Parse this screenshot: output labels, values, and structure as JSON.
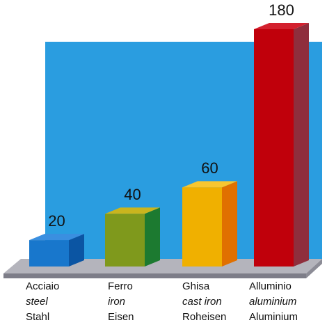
{
  "chart_data": {
    "type": "bar3d",
    "categories": [
      [
        "Acciaio",
        "steel",
        "Stahl"
      ],
      [
        "Ferro",
        "iron",
        "Eisen"
      ],
      [
        "Ghisa",
        "cast iron",
        "Roheisen"
      ],
      [
        "Alluminio",
        "aluminium",
        "Aluminium"
      ]
    ],
    "values": [
      20,
      40,
      60,
      180
    ],
    "colors": [
      {
        "front": "#1877cc",
        "side": "#0b55a3",
        "top": "#3a8fe0"
      },
      {
        "front": "#7f991c",
        "side": "#1c7a30",
        "top": "#c9b51e"
      },
      {
        "front": "#f0b000",
        "side": "#e07000",
        "top": "#f7c630"
      },
      {
        "front": "#c0000b",
        "side": "#8f2e3c",
        "top": "#d3202e"
      }
    ]
  }
}
